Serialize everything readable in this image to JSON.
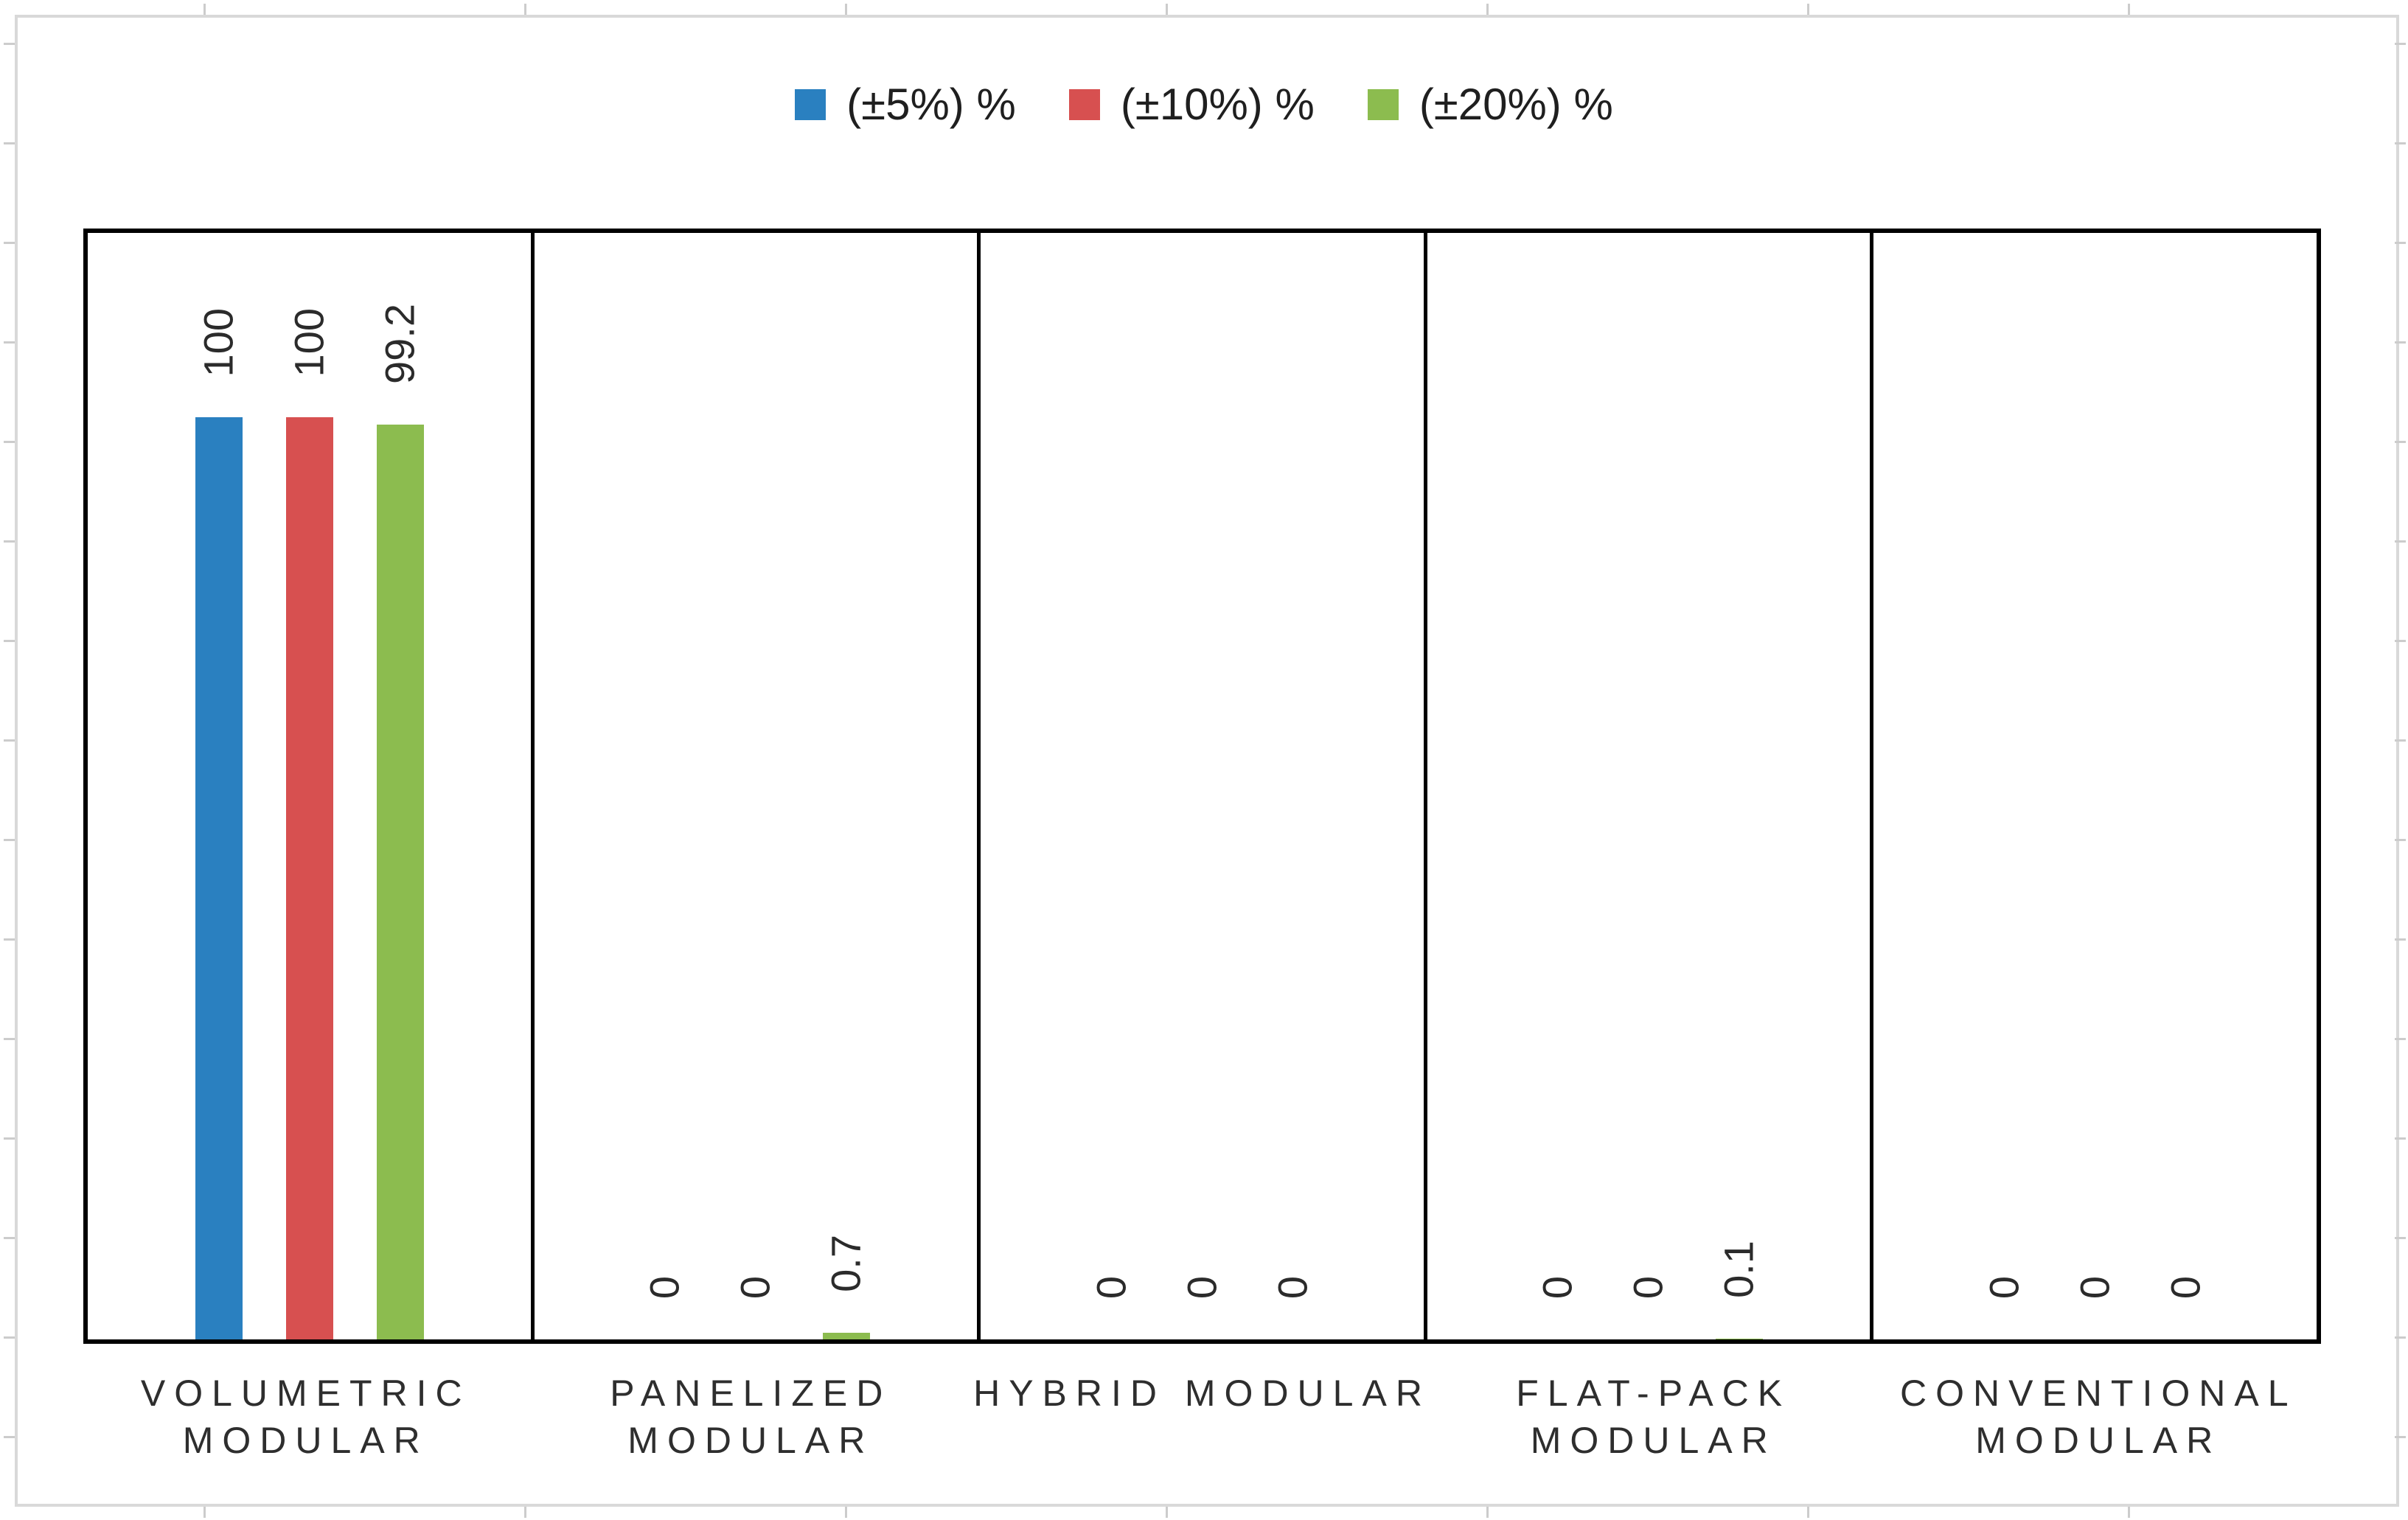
{
  "chart_data": {
    "type": "bar",
    "title": "",
    "xlabel": "",
    "ylabel": "",
    "ylim": [
      0,
      120
    ],
    "yaxis_visible": false,
    "grid": false,
    "legend_position": "top-center",
    "panel_borders": true,
    "bar_label_rotation_deg": -90,
    "categories": [
      "VOLUMETRIC MODULAR",
      "PANELIZED MODULAR",
      "HYBRID MODULAR",
      "FLAT-PACK MODULAR",
      "CONVENTIONAL MODULAR"
    ],
    "category_lines": [
      [
        "VOLUMETRIC",
        "MODULAR"
      ],
      [
        "PANELIZED",
        "MODULAR"
      ],
      [
        "HYBRID MODULAR"
      ],
      [
        "FLAT-PACK",
        "MODULAR"
      ],
      [
        "CONVENTIONAL",
        "MODULAR"
      ]
    ],
    "series": [
      {
        "name": "(±5%) %",
        "color": "#2A80C0",
        "values": [
          100,
          0,
          0,
          0,
          0
        ],
        "labels": [
          "100",
          "0",
          "0",
          "0",
          "0"
        ]
      },
      {
        "name": "(±10%) %",
        "color": "#D75050",
        "values": [
          100,
          0,
          0,
          0,
          0
        ],
        "labels": [
          "100",
          "0",
          "0",
          "0",
          "0"
        ]
      },
      {
        "name": "(±20%) %",
        "color": "#8CBC4F",
        "values": [
          99.2,
          0.7,
          0,
          0.1,
          0
        ],
        "labels": [
          "99.2",
          "0.7",
          "0",
          "0.1",
          "0"
        ]
      }
    ]
  },
  "style": {
    "figure_border_color": "#d9d9d9",
    "plot_border_color": "#000000",
    "data_label_color": "#2b2b2b",
    "category_label_color": "#2e2e2e",
    "background": "#ffffff"
  }
}
